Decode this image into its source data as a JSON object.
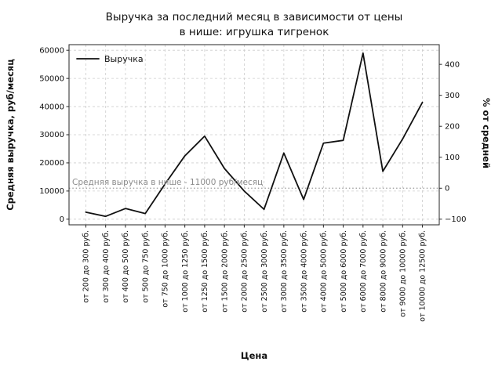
{
  "chart_data": {
    "type": "line",
    "title": "Выручка за последний месяц в зависимости от цены в нише: игрушка тигренок",
    "title_line1": "Выручка за последний месяц в зависимости от цены",
    "title_line2": "в нише: игрушка тигренок",
    "xlabel": "Цена",
    "ylabel_left": "Средняя выручка, руб/месяц",
    "ylabel_right": "% от средней",
    "grid": true,
    "legend_position": "upper left",
    "line_color": "#111111",
    "categories": [
      "от 200 до 300 руб.",
      "от 300 до 400 руб.",
      "от 400 до 500 руб.",
      "от 500 до 750 руб.",
      "от 750 до 1000 руб.",
      "от 1000 до 1250 руб.",
      "от 1250 до 1500 руб.",
      "от 1500 до 2000 руб.",
      "от 2000 до 2500 руб.",
      "от 2500 до 3000 руб.",
      "от 3000 до 3500 руб.",
      "от 3500 до 4000 руб.",
      "от 4000 до 5000 руб.",
      "от 5000 до 6000 руб.",
      "от 6000 до 7000 руб.",
      "от 8000 до 9000 руб.",
      "от 9000 до 10000 руб.",
      "от 10000 до 12500 руб."
    ],
    "series": [
      {
        "name": "Выручка",
        "values": [
          2500,
          1000,
          3800,
          2000,
          12500,
          22500,
          29500,
          18000,
          10000,
          3500,
          23500,
          7000,
          27000,
          28000,
          59000,
          17000,
          28500,
          41500
        ]
      }
    ],
    "average_line": {
      "value": 11000,
      "label": "Средняя выручка в нише - 11000 руб/месяц"
    },
    "ylim_left": [
      -2000,
      62000
    ],
    "yticks_left": [
      0,
      10000,
      20000,
      30000,
      40000,
      50000,
      60000
    ],
    "yticks_right": [
      -100,
      0,
      100,
      200,
      300,
      400
    ]
  }
}
